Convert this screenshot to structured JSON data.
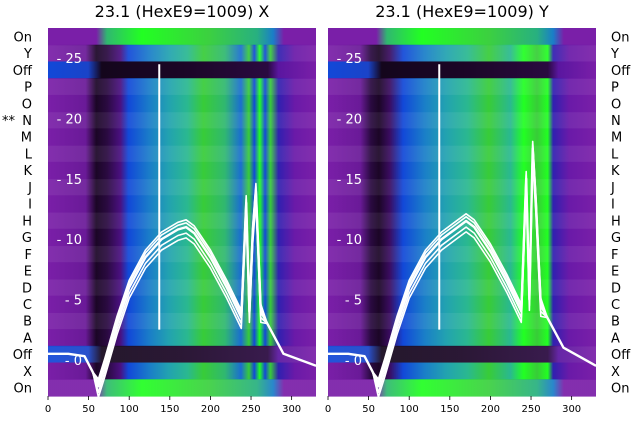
{
  "chart_data": [
    {
      "type": "heatmap",
      "title": "23.1 (HexE9=1009) X",
      "row_labels_top_to_bottom": [
        "On",
        "Y",
        "Off",
        "P",
        "O",
        "N",
        "M",
        "L",
        "K",
        "J",
        "I",
        "H",
        "G",
        "F",
        "E",
        "D",
        "C",
        "B",
        "A",
        "Off",
        "X",
        "On"
      ],
      "marked_rows": [
        {
          "row": "N",
          "marker": "**"
        }
      ],
      "xlim": [
        0,
        330
      ],
      "x_ticks": [
        0,
        50,
        100,
        150,
        200,
        250,
        300
      ],
      "overlay_ylim": [
        -3,
        27.5
      ],
      "overlay_y_ticks": [
        0,
        5,
        10,
        15,
        20,
        25
      ],
      "grid": false,
      "overlay_trace": {
        "x": [
          0,
          25,
          45,
          55,
          62,
          70,
          85,
          100,
          120,
          140,
          160,
          170,
          180,
          200,
          220,
          238,
          244,
          248,
          252,
          256,
          262,
          270,
          290,
          330
        ],
        "y": [
          0.5,
          0.5,
          0.3,
          -1.0,
          -2.2,
          -0.5,
          3.0,
          6.0,
          8.5,
          10.0,
          10.8,
          11.0,
          10.5,
          8.5,
          6.0,
          3.5,
          13.0,
          4.0,
          10.5,
          14.0,
          4.0,
          3.0,
          0.5,
          -0.5
        ],
        "spike": {
          "x": 137,
          "y": 24.5
        }
      }
    },
    {
      "type": "heatmap",
      "title": "23.1 (HexE9=1009) Y",
      "row_labels_top_to_bottom": [
        "On",
        "Y",
        "Off",
        "P",
        "O",
        "N",
        "M",
        "L",
        "K",
        "J",
        "I",
        "H",
        "G",
        "F",
        "E",
        "D",
        "C",
        "B",
        "A",
        "Off",
        "X",
        "On"
      ],
      "xlim": [
        0,
        330
      ],
      "x_ticks": [
        0,
        50,
        100,
        150,
        200,
        250,
        300
      ],
      "overlay_ylim": [
        -3,
        27.5
      ],
      "overlay_y_ticks": [
        0,
        5,
        10,
        15,
        20,
        25
      ],
      "grid": false,
      "overlay_trace": {
        "x": [
          0,
          25,
          45,
          55,
          62,
          70,
          85,
          100,
          120,
          140,
          160,
          170,
          180,
          200,
          220,
          238,
          244,
          248,
          252,
          256,
          262,
          270,
          290,
          330
        ],
        "y": [
          0.5,
          0.5,
          0.3,
          -1.0,
          -2.2,
          -0.5,
          3.0,
          6.0,
          8.5,
          10.0,
          11.0,
          11.5,
          11.0,
          9.0,
          6.5,
          4.0,
          15.0,
          5.0,
          17.5,
          13.0,
          4.5,
          3.5,
          1.0,
          -0.5
        ],
        "spike": {
          "x": 137,
          "y": 24.5
        }
      }
    }
  ],
  "colors": {
    "purple": "#7a1fa8",
    "dark": "#1b0626",
    "blue": "#1248d8",
    "teal": "#22a2b0",
    "green": "#38cc38",
    "bright_green": "#22ff22",
    "trace": "#ffffff"
  }
}
